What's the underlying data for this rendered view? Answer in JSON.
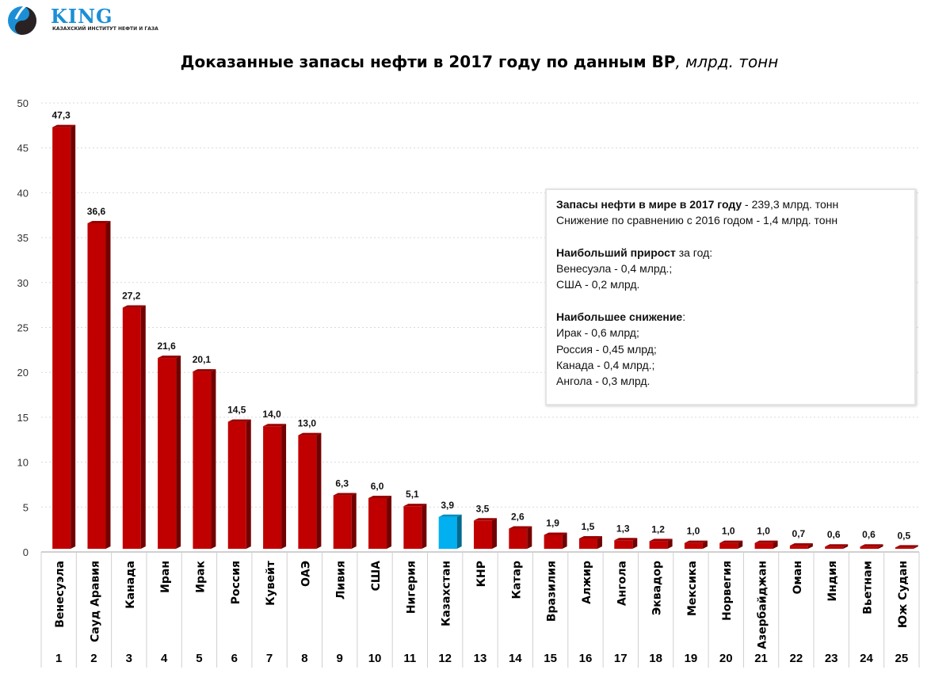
{
  "logo": {
    "name": "KING",
    "subtitle": "КАЗАХСКИЙ ИНСТИТУТ НЕФТИ И ГАЗА"
  },
  "colors": {
    "bar": "#c00000",
    "highlight": "#00b0f0",
    "grid": "#d9d9d9"
  },
  "chart_data": {
    "type": "bar",
    "title": "Доказанные запасы нефти в 2017 году по данным BP",
    "title_unit": ", млрд. тонн",
    "ylim": [
      0,
      50
    ],
    "yticks": [
      0,
      5,
      10,
      15,
      20,
      25,
      30,
      35,
      40,
      45,
      50
    ],
    "grid": true,
    "categories": [
      "Венесуэла",
      "Сауд Аравия",
      "Канада",
      "Иран",
      "Ирак",
      "Россия",
      "Кувейт",
      "ОАЭ",
      "Ливия",
      "США",
      "Нигерия",
      "Казахстан",
      "КНР",
      "Катар",
      "Вразилия",
      "Алжир",
      "Ангола",
      "Эквадор",
      "Мексика",
      "Норвегия",
      "Азербайджан",
      "Оман",
      "Индия",
      "Вьетнам",
      "Юж Судан"
    ],
    "ranks": [
      "1",
      "2",
      "3",
      "4",
      "5",
      "6",
      "7",
      "8",
      "9",
      "10",
      "11",
      "12",
      "13",
      "14",
      "15",
      "16",
      "17",
      "18",
      "19",
      "20",
      "21",
      "22",
      "23",
      "24",
      "25"
    ],
    "values": [
      47.3,
      36.6,
      27.2,
      21.6,
      20.1,
      14.5,
      14.0,
      13.0,
      6.3,
      6.0,
      5.1,
      3.9,
      3.5,
      2.6,
      1.9,
      1.5,
      1.3,
      1.2,
      1.0,
      1.0,
      1.0,
      0.7,
      0.6,
      0.6,
      0.5
    ],
    "labels": [
      "47,3",
      "36,6",
      "27,2",
      "21,6",
      "20,1",
      "14,5",
      "14,0",
      "13,0",
      "6,3",
      "6,0",
      "5,1",
      "3,9",
      "3,5",
      "2,6",
      "1,9",
      "1,5",
      "1,3",
      "1,2",
      "1,0",
      "1,0",
      "1,0",
      "0,7",
      "0,6",
      "0,6",
      "0,5"
    ],
    "highlighted_category": "Казахстан"
  },
  "note": {
    "line1_bold": "Запасы нефти в мире в 2017 году",
    "line1_rest": " - 239,3 млрд. тонн",
    "line2": "Снижение по сравнению с 2016 годом - 1,4 млрд. тонн",
    "growth_bold": "Наибольший прирост",
    "growth_rest": " за год:",
    "growth_items": [
      "Венесуэла - 0,4 млрд.;",
      "США - 0,2 млрд."
    ],
    "decline_bold": "Наибольшее снижение",
    "decline_rest": ":",
    "decline_items": [
      "Ирак - 0,6 млрд;",
      "Россия - 0,45 млрд;",
      "Канада - 0,4 млрд.;",
      "Ангола - 0,3 млрд."
    ]
  }
}
